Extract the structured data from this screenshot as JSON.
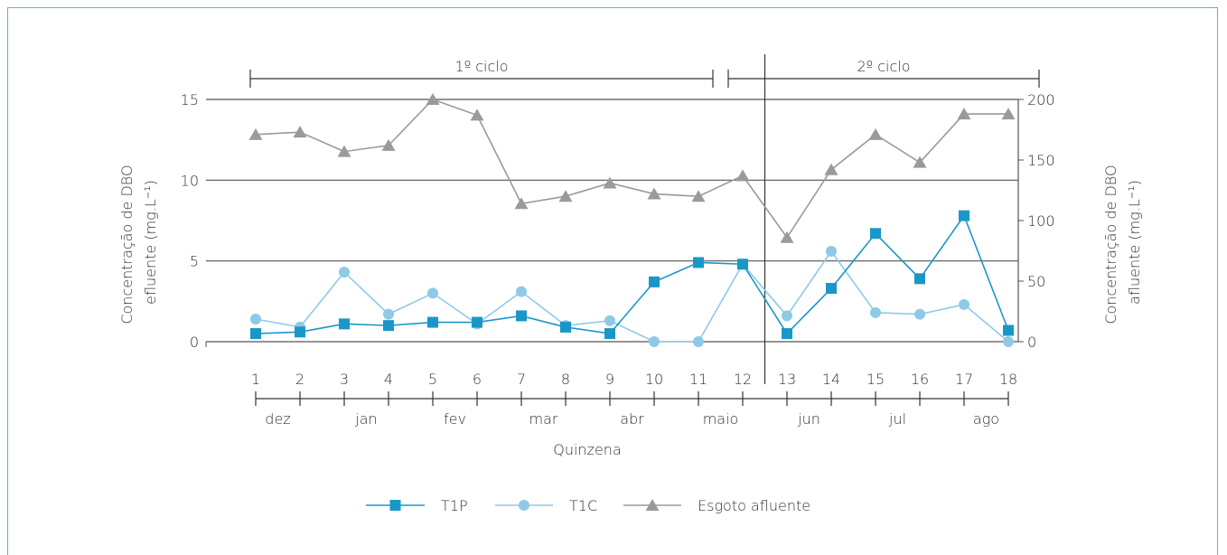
{
  "chart_data": {
    "type": "line",
    "x": [
      1,
      2,
      3,
      4,
      5,
      6,
      7,
      8,
      9,
      10,
      11,
      12,
      13,
      14,
      15,
      16,
      17,
      18
    ],
    "xlabel": "Quinzena",
    "ylabel_left": "Concentração de DBO efluente (mg.L⁻¹)",
    "ylabel_left_lines": [
      "Concentração de DBO",
      "efluente (mg.L⁻¹)"
    ],
    "ylabel_right": "Concentração de DBO afluente (mg.L⁻¹)",
    "ylabel_right_lines": [
      "Concentração de DBO",
      "afluente (mg.L⁻¹)"
    ],
    "ylim_left": [
      0,
      15
    ],
    "yticks_left": [
      "0",
      "5",
      "10",
      "15"
    ],
    "ylim_right": [
      0,
      200
    ],
    "yticks_right": [
      "0",
      "50",
      "100",
      "150",
      "200"
    ],
    "months": [
      "dez",
      "jan",
      "fev",
      "mar",
      "abr",
      "maio",
      "jun",
      "jul",
      "ago"
    ],
    "cycles": [
      {
        "label": "1º ciclo",
        "from": 1,
        "to": 11
      },
      {
        "label": "2º ciclo",
        "from": 12,
        "to": 18
      }
    ],
    "cycle_divider_at": 12,
    "series": [
      {
        "name": "T1P",
        "axis": "left",
        "color": "#1a97c8",
        "marker": "square",
        "x": [
          1,
          2,
          3,
          4,
          5,
          6,
          7,
          8,
          9,
          10,
          11,
          12,
          13,
          14,
          15,
          16,
          17,
          18
        ],
        "values": [
          0.5,
          0.6,
          1.1,
          1.0,
          1.2,
          1.2,
          1.6,
          0.9,
          0.5,
          3.7,
          4.9,
          4.8,
          0.5,
          3.3,
          6.7,
          3.9,
          7.8,
          0.7
        ]
      },
      {
        "name": "T1C",
        "axis": "left",
        "color": "#8ecae6",
        "marker": "circle",
        "x": [
          1,
          2,
          3,
          4,
          5,
          6,
          7,
          8,
          9,
          10,
          11,
          12,
          13,
          14,
          15,
          16,
          17,
          18
        ],
        "values": [
          1.4,
          0.9,
          4.3,
          1.7,
          3.0,
          1.1,
          3.1,
          1.0,
          1.3,
          0.0,
          0.0,
          4.8,
          1.6,
          5.6,
          1.8,
          1.7,
          2.3,
          0.0
        ]
      },
      {
        "name": "Esgoto afluente",
        "axis": "right",
        "color": "#9a9a9a",
        "marker": "triangle",
        "x": [
          1,
          2,
          3,
          4,
          5,
          6,
          7,
          8,
          9,
          10,
          11,
          12,
          13,
          14,
          15,
          16,
          17,
          18
        ],
        "values": [
          171,
          173,
          157,
          162,
          200,
          187,
          114,
          120,
          131,
          122,
          120,
          137,
          86,
          142,
          171,
          148,
          188,
          188
        ]
      }
    ],
    "legend_position": "bottom-center",
    "grid": "horizontal"
  }
}
